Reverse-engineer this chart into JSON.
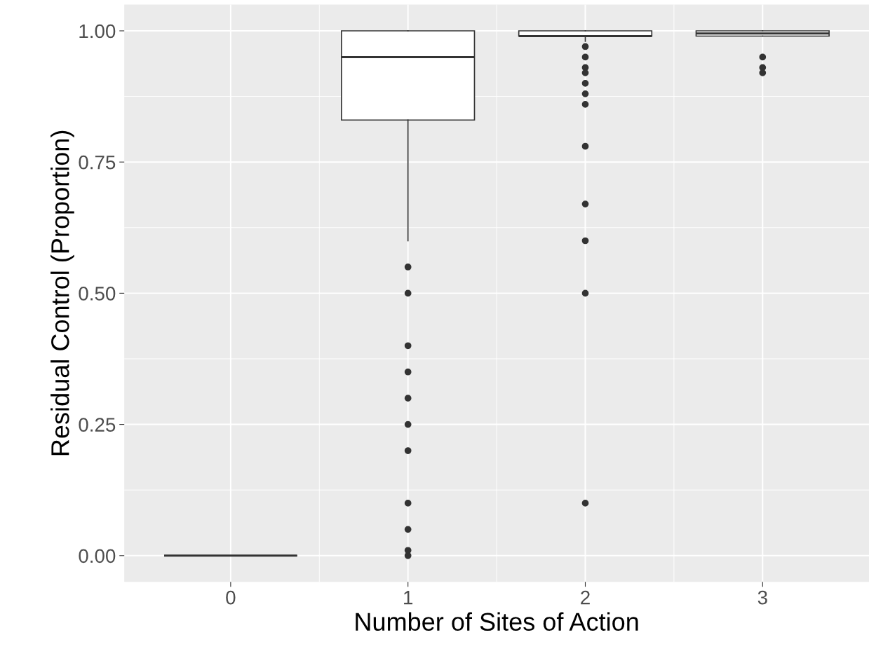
{
  "chart_data": {
    "type": "box",
    "xlabel": "Number of Sites of Action",
    "ylabel": "Residual Control (Proportion)",
    "categories": [
      "0",
      "1",
      "2",
      "3"
    ],
    "boxes": [
      {
        "low": 0,
        "q1": 0,
        "median": 0,
        "q3": 0,
        "high": 0
      },
      {
        "low": 0.6,
        "q1": 0.83,
        "median": 0.95,
        "q3": 1.0,
        "high": 1.0,
        "outliers": [
          0.55,
          0.5,
          0.4,
          0.35,
          0.3,
          0.25,
          0.2,
          0.1,
          0.05,
          0.01,
          0
        ]
      },
      {
        "low": 0.98,
        "q1": 0.99,
        "median": 0.99,
        "q3": 1.0,
        "high": 1.0,
        "outliers": [
          0.97,
          0.95,
          0.93,
          0.92,
          0.9,
          0.88,
          0.86,
          0.78,
          0.67,
          0.6,
          0.5,
          0.1
        ]
      },
      {
        "low": 0.99,
        "q1": 0.99,
        "median": 0.995,
        "q3": 1.0,
        "high": 1.0,
        "outliers": [
          0.95,
          0.93,
          0.92
        ]
      }
    ],
    "ylim": [
      -0.05,
      1.05
    ],
    "yticks": [
      {
        "value": 0,
        "label": "0.00"
      },
      {
        "value": 0.25,
        "label": "0.25"
      },
      {
        "value": 0.5,
        "label": "0.50"
      },
      {
        "value": 0.75,
        "label": "0.75"
      },
      {
        "value": 1,
        "label": "1.00"
      }
    ],
    "grid": true
  }
}
